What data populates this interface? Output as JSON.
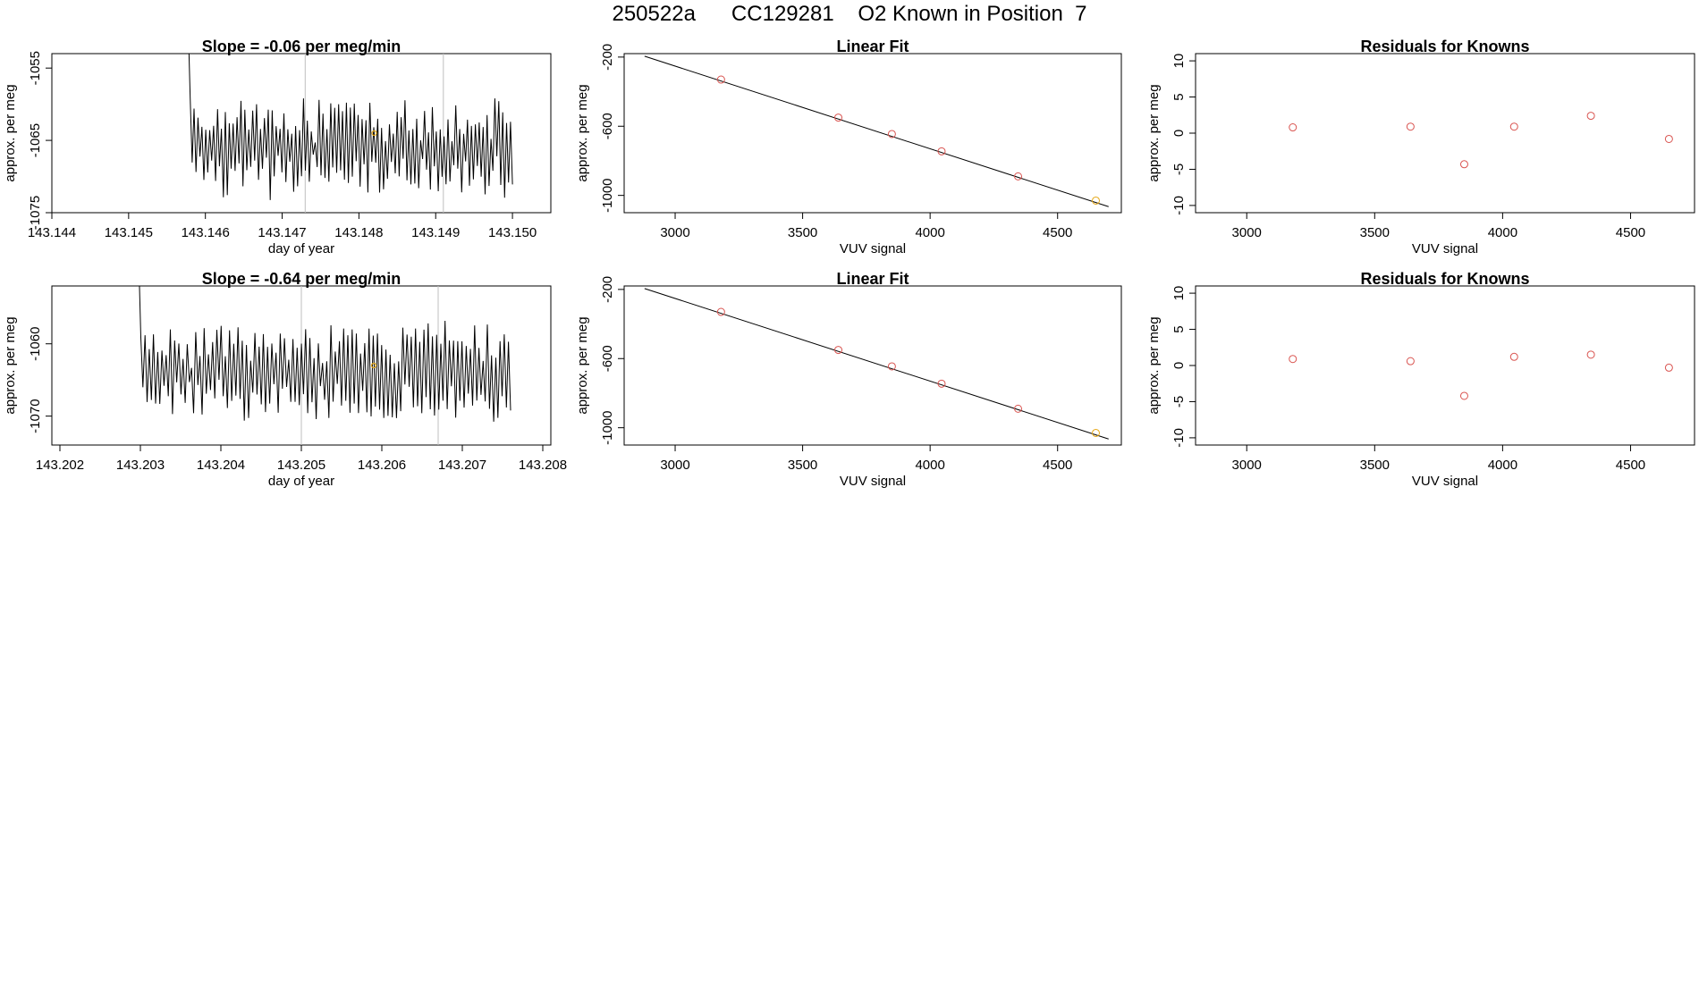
{
  "figure": {
    "title": "250522a      CC129281    O2 Known in Position  7"
  },
  "colors": {
    "axis": "#000000",
    "trace": "#000000",
    "marker": "#d9534f",
    "highlight": "#e6a817",
    "vline": "#bfbfbf"
  },
  "chart_data": [
    {
      "id": "ts1",
      "type": "line",
      "title": "Slope =  -0.06  per meg/min",
      "xlabel": "day of year",
      "ylabel": "approx. per meg",
      "xlim": [
        143.144,
        143.1505
      ],
      "ylim": [
        -1075,
        -1053
      ],
      "xticks": [
        "143.144",
        "143.145",
        "143.146",
        "143.147",
        "143.148",
        "143.149",
        "143.150"
      ],
      "xtick_values": [
        143.144,
        143.145,
        143.146,
        143.147,
        143.148,
        143.149,
        143.15
      ],
      "yticks": [
        "-1075",
        "-1065",
        "-1055"
      ],
      "ytick_values": [
        -1075,
        -1065,
        -1055
      ],
      "series": [
        {
          "name": "trace",
          "x_start": 143.1457,
          "x_end": 143.15,
          "center": -1066,
          "amplitude": 6,
          "points": 170
        }
      ],
      "vlines": [
        143.1473,
        143.1491
      ],
      "highlight_point": {
        "x": 143.1482,
        "y": -1064
      }
    },
    {
      "id": "fit1",
      "type": "scatter",
      "title": "Linear Fit",
      "xlabel": "VUV signal",
      "ylabel": "approx. per meg",
      "xlim": [
        2800,
        4750
      ],
      "ylim": [
        -1100,
        -180
      ],
      "xticks": [
        "3000",
        "3500",
        "4000",
        "4500"
      ],
      "xtick_values": [
        3000,
        3500,
        4000,
        4500
      ],
      "yticks": [
        "-1000",
        "-600",
        "-200"
      ],
      "ytick_values": [
        -1000,
        -600,
        -200
      ],
      "x": [
        3180,
        3640,
        3850,
        4045,
        4345,
        4650
      ],
      "y": [
        -330,
        -550,
        -645,
        -745,
        -890,
        -1030
      ],
      "fit_line": {
        "x": [
          2880,
          4700
        ],
        "y": [
          -195,
          -1065
        ]
      },
      "highlight_index": 5
    },
    {
      "id": "res1",
      "type": "scatter",
      "title": "Residuals for Knowns",
      "xlabel": "VUV signal",
      "ylabel": "approx. per meg",
      "xlim": [
        2800,
        4750
      ],
      "ylim": [
        -11,
        11
      ],
      "xticks": [
        "3000",
        "3500",
        "4000",
        "4500"
      ],
      "xtick_values": [
        3000,
        3500,
        4000,
        4500
      ],
      "yticks": [
        "-10",
        "-5",
        "0",
        "5",
        "10"
      ],
      "ytick_values": [
        -10,
        -5,
        0,
        5,
        10
      ],
      "x": [
        3180,
        3640,
        3850,
        4045,
        4345,
        4650
      ],
      "y": [
        0.8,
        0.9,
        -4.3,
        0.9,
        2.4,
        -0.8
      ]
    },
    {
      "id": "ts2",
      "type": "line",
      "title": "Slope =  -0.64  per meg/min",
      "xlabel": "day of year",
      "ylabel": "approx. per meg",
      "xlim": [
        143.2019,
        143.2081
      ],
      "ylim": [
        -1074,
        -1052
      ],
      "xticks": [
        "143.202",
        "143.203",
        "143.204",
        "143.205",
        "143.206",
        "143.207",
        "143.208"
      ],
      "xtick_values": [
        143.202,
        143.203,
        143.204,
        143.205,
        143.206,
        143.207,
        143.208
      ],
      "yticks": [
        "-1070",
        "-1060"
      ],
      "ytick_values": [
        -1070,
        -1060
      ],
      "series": [
        {
          "name": "trace",
          "x_start": 143.2029,
          "x_end": 143.2076,
          "center": -1064,
          "amplitude": 6,
          "points": 180
        }
      ],
      "vlines": [
        143.205,
        143.2067
      ],
      "highlight_point": {
        "x": 143.2059,
        "y": -1063
      }
    },
    {
      "id": "fit2",
      "type": "scatter",
      "title": "Linear Fit",
      "xlabel": "VUV signal",
      "ylabel": "approx. per meg",
      "xlim": [
        2800,
        4750
      ],
      "ylim": [
        -1100,
        -180
      ],
      "xticks": [
        "3000",
        "3500",
        "4000",
        "4500"
      ],
      "xtick_values": [
        3000,
        3500,
        4000,
        4500
      ],
      "yticks": [
        "-1000",
        "-600",
        "-200"
      ],
      "ytick_values": [
        -1000,
        -600,
        -200
      ],
      "x": [
        3180,
        3640,
        3850,
        4045,
        4345,
        4650
      ],
      "y": [
        -330,
        -550,
        -645,
        -745,
        -890,
        -1030
      ],
      "fit_line": {
        "x": [
          2880,
          4700
        ],
        "y": [
          -195,
          -1065
        ]
      },
      "highlight_index": 5
    },
    {
      "id": "res2",
      "type": "scatter",
      "title": "Residuals for Knowns",
      "xlabel": "VUV signal",
      "ylabel": "approx. per meg",
      "xlim": [
        2800,
        4750
      ],
      "ylim": [
        -11,
        11
      ],
      "xticks": [
        "3000",
        "3500",
        "4000",
        "4500"
      ],
      "xtick_values": [
        3000,
        3500,
        4000,
        4500
      ],
      "yticks": [
        "-10",
        "-5",
        "0",
        "5",
        "10"
      ],
      "ytick_values": [
        -10,
        -5,
        0,
        5,
        10
      ],
      "x": [
        3180,
        3640,
        3850,
        4045,
        4345,
        4650
      ],
      "y": [
        0.9,
        0.6,
        -4.2,
        1.2,
        1.5,
        -0.3
      ]
    }
  ]
}
